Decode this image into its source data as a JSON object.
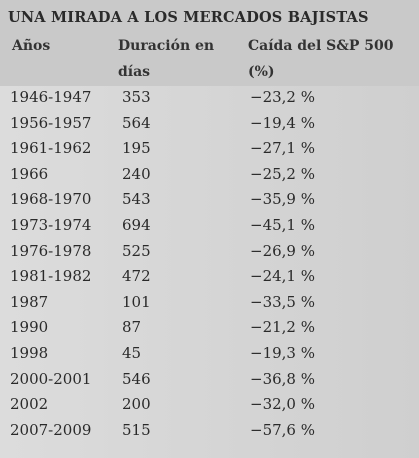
{
  "header": {
    "title": "UNA MIRADA A LOS MERCADOS BAJISTAS",
    "columns": [
      [
        "Años"
      ],
      [
        "Duración en",
        "días"
      ],
      [
        "Caída del S&P 500",
        "(%)"
      ]
    ]
  },
  "table": {
    "rows": [
      [
        "1946-1947",
        "353",
        "−23,2 %"
      ],
      [
        "1956-1957",
        "564",
        "−19,4 %"
      ],
      [
        "1961-1962",
        "195",
        "−27,1 %"
      ],
      [
        "1966",
        "240",
        "−25,2 %"
      ],
      [
        "1968-1970",
        "543",
        "−35,9 %"
      ],
      [
        "1973-1974",
        "694",
        "−45,1 %"
      ],
      [
        "1976-1978",
        "525",
        "−26,9 %"
      ],
      [
        "1981-1982",
        "472",
        "−24,1 %"
      ],
      [
        "1987",
        "101",
        "−33,5 %"
      ],
      [
        "1990",
        "87",
        "−21,2 %"
      ],
      [
        "1998",
        "45",
        "−19,3 %"
      ],
      [
        "2000-2001",
        "546",
        "−36,8 %"
      ],
      [
        "2002",
        "200",
        "−32,0 %"
      ],
      [
        "2007-2009",
        "515",
        "−57,6 %"
      ]
    ]
  }
}
